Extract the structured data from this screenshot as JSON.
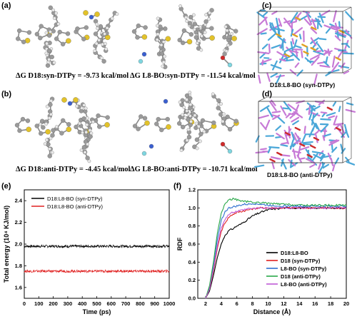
{
  "panels": {
    "a": {
      "letter": "(a)",
      "energy_left": "ΔG D18:syn-DTPy = -9.73 kcal/mol",
      "energy_right": "ΔG L8-BO:syn-DTPy = -11.54 kcal/mol"
    },
    "b": {
      "letter": "(b)",
      "energy_left": "ΔG D18:anti-DTPy = -4.45 kcal/mol",
      "energy_right": "ΔG L8-BO:anti-DTPy = -10.71 kcal/mol"
    },
    "c": {
      "letter": "(c)",
      "caption": "D18:L8-BO (syn-DTPy)"
    },
    "d": {
      "letter": "(d)",
      "caption": "D18:L8-BO (anti-DTPy)"
    },
    "e": {
      "letter": "(e)"
    },
    "f": {
      "letter": "(f)"
    }
  },
  "colors": {
    "carbon": "#9a9a9a",
    "hydrogen": "#e8e8e8",
    "sulfur": "#e2c22a",
    "nitrogen": "#3a5fd0",
    "oxygen": "#d02a2a",
    "fluorine": "#7fd6e0",
    "d18_box": "#4aa7d8",
    "l8bo_box": "#c77ad6",
    "dtpy_syn": "#e0a020",
    "dtpy_anti": "#cc2a2a"
  },
  "chart_data": [
    {
      "type": "line",
      "panel": "e",
      "xlabel": "Time (ps)",
      "ylabel": "Total energy (10⁴ KJ/mol)",
      "xlim": [
        0,
        1000
      ],
      "ylim": [
        1.5,
        2.5
      ],
      "xticks": [
        "0",
        "100",
        "200",
        "300",
        "400",
        "500",
        "600",
        "700",
        "800",
        "900",
        "1000"
      ],
      "yticks": [
        "1.6",
        "1.8",
        "2.0",
        "2.2",
        "2.4"
      ],
      "legend_position": "top-left",
      "series": [
        {
          "name": "D18:L8-BO (syn-DTPy)",
          "color": "#000000",
          "mean": 1.98,
          "noise": 0.012
        },
        {
          "name": "D18:L8-BO (anti-DTPy)",
          "color": "#e02020",
          "mean": 1.75,
          "noise": 0.012
        }
      ]
    },
    {
      "type": "line",
      "panel": "f",
      "xlabel": "Distance (Å)",
      "ylabel": "RDF",
      "xlim": [
        1,
        20
      ],
      "ylim": [
        0,
        1.2
      ],
      "xticks": [
        "2",
        "4",
        "6",
        "8",
        "10",
        "12",
        "14",
        "16",
        "18",
        "20"
      ],
      "yticks": [
        "0.0",
        "0.2",
        "0.4",
        "0.6",
        "0.8",
        "1.0",
        "1.2"
      ],
      "legend_position": "bottom-right",
      "series": [
        {
          "name": "D18:L8-BO",
          "color": "#000000",
          "x": [
            2,
            2.5,
            3,
            3.5,
            4,
            4.5,
            5,
            5.5,
            6,
            6.5,
            7,
            7.5,
            8,
            9,
            10,
            12,
            14,
            16,
            18,
            20
          ],
          "y": [
            0.0,
            0.08,
            0.25,
            0.45,
            0.6,
            0.7,
            0.75,
            0.77,
            0.8,
            0.82,
            0.85,
            0.88,
            0.91,
            0.95,
            0.98,
            1.0,
            1.0,
            1.0,
            1.0,
            1.0
          ]
        },
        {
          "name": "D18 (syn-DTPy)",
          "color": "#e02020",
          "x": [
            2,
            2.5,
            3,
            3.5,
            4,
            4.5,
            5,
            5.5,
            6,
            6.5,
            7,
            7.5,
            8,
            9,
            10,
            12,
            14,
            16,
            18,
            20
          ],
          "y": [
            0.0,
            0.1,
            0.3,
            0.55,
            0.74,
            0.84,
            0.9,
            0.93,
            0.95,
            0.96,
            0.97,
            0.98,
            0.99,
            1.0,
            1.0,
            1.0,
            1.0,
            1.0,
            1.0,
            1.0
          ]
        },
        {
          "name": "L8-BO (syn-DTPy)",
          "color": "#2e6fd0",
          "x": [
            2,
            2.5,
            3,
            3.5,
            4,
            4.5,
            5,
            5.5,
            6,
            6.5,
            7,
            7.5,
            8,
            9,
            10,
            12,
            14,
            16,
            18,
            20
          ],
          "y": [
            0.0,
            0.12,
            0.35,
            0.65,
            0.86,
            0.96,
            1.0,
            1.01,
            1.02,
            1.03,
            1.04,
            1.04,
            1.05,
            1.04,
            1.03,
            1.02,
            1.02,
            1.02,
            1.02,
            1.02
          ]
        },
        {
          "name": "D18 (anti-DTPy)",
          "color": "#2aa84a",
          "x": [
            2,
            2.5,
            3,
            3.5,
            4,
            4.5,
            5,
            5.5,
            6,
            6.5,
            7,
            7.5,
            8,
            9,
            10,
            12,
            14,
            16,
            18,
            20
          ],
          "y": [
            0.0,
            0.14,
            0.4,
            0.72,
            0.94,
            1.05,
            1.09,
            1.1,
            1.09,
            1.08,
            1.07,
            1.07,
            1.06,
            1.06,
            1.05,
            1.04,
            1.03,
            1.03,
            1.03,
            1.03
          ]
        },
        {
          "name": "L8-BO (anti-DTPy)",
          "color": "#c05ad6",
          "x": [
            2,
            2.5,
            3,
            3.5,
            4,
            4.5,
            5,
            5.5,
            6,
            6.5,
            7,
            7.5,
            8,
            9,
            10,
            12,
            14,
            16,
            18,
            20
          ],
          "y": [
            0.0,
            0.1,
            0.32,
            0.58,
            0.78,
            0.88,
            0.93,
            0.95,
            0.96,
            0.97,
            0.98,
            0.99,
            0.99,
            1.0,
            1.0,
            1.0,
            1.0,
            1.0,
            1.0,
            1.0
          ]
        }
      ]
    }
  ]
}
